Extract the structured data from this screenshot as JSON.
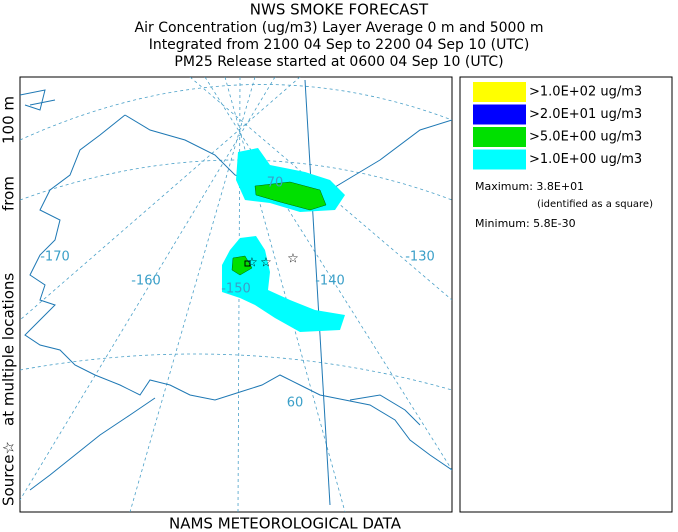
{
  "header": {
    "title": "NWS SMOKE FORECAST",
    "lines": [
      "Air Concentration (ug/m3) Layer Average    0 m and  5000 m",
      "Integrated from 2100 04 Sep to 2200 04 Sep 10 (UTC)",
      "PM25 Release started at 0600 04 Sep 10 (UTC)"
    ]
  },
  "side_label": [
    "Source☆",
    "at multiple locations",
    "from",
    "100 m"
  ],
  "footer": "NAMS METEOROLOGICAL DATA",
  "map": {
    "labels": [
      "-170",
      "-160",
      "-150",
      "-140",
      "-130",
      "70",
      "60"
    ]
  },
  "legend": {
    "items": [
      {
        "label": ">1.0E+02 ug/m3",
        "color": "#ffff00"
      },
      {
        "label": ">2.0E+01 ug/m3",
        "color": "#0000ff"
      },
      {
        "label": ">5.0E+00 ug/m3",
        "color": "#00e000"
      },
      {
        "label": ">1.0E+00 ug/m3",
        "color": "#00ffff"
      }
    ],
    "maximum": "Maximum: 3.8E+01",
    "maximum_note": "(identified as a square)",
    "minimum": "Minimum: 5.8E-30"
  }
}
